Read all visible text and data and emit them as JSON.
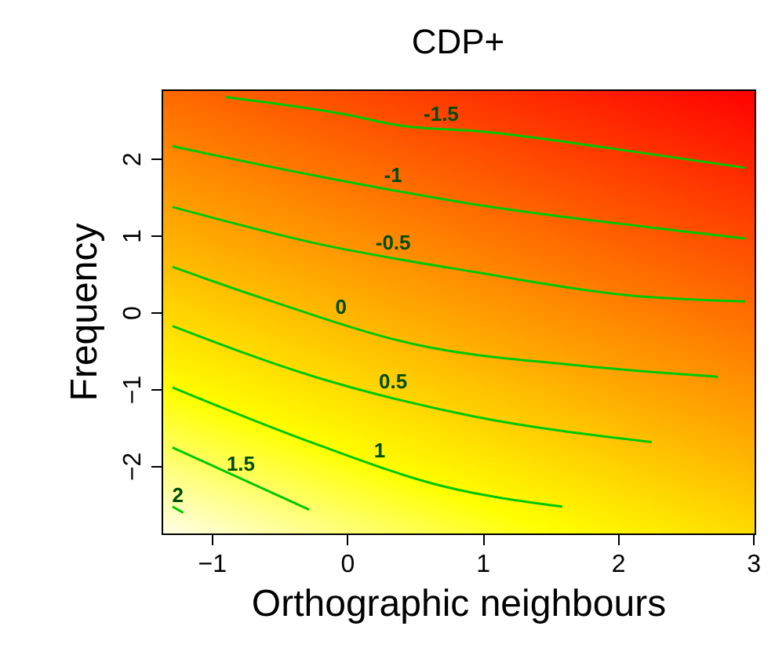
{
  "chart_data": {
    "type": "line",
    "title": "CDP+",
    "xlabel": "Orthographic neighbours",
    "ylabel": "Frequency",
    "xlim": [
      -1.37,
      3.01
    ],
    "ylim": [
      -2.88,
      2.9
    ],
    "xticks": [
      -1,
      0,
      1,
      2,
      3
    ],
    "yticks": [
      -2,
      -1,
      0,
      1,
      2
    ],
    "grid": false,
    "marker": "none",
    "line_style": "solid",
    "series": [
      {
        "name": "-1.5",
        "color": "#00c800",
        "x": [
          -0.9,
          0,
          0.39,
          1,
          2,
          2.94
        ],
        "values": [
          2.8,
          2.57,
          2.43,
          2.35,
          2.12,
          1.88
        ]
      },
      {
        "name": "-1",
        "color": "#00c800",
        "x": [
          -1.29,
          -0.24,
          0.92,
          2.45,
          2.94
        ],
        "values": [
          2.16,
          1.78,
          1.41,
          1.06,
          0.96
        ]
      },
      {
        "name": "-0.5",
        "color": "#00c800",
        "x": [
          -1.29,
          -0.24,
          0.92,
          2.08,
          2.94
        ],
        "values": [
          1.37,
          0.9,
          0.53,
          0.22,
          0.14
        ]
      },
      {
        "name": "0",
        "color": "#00c800",
        "x": [
          -1.29,
          -0.62,
          0.53,
          1.69,
          2.74
        ],
        "values": [
          0.59,
          0.18,
          -0.43,
          -0.69,
          -0.84
        ]
      },
      {
        "name": "0.5",
        "color": "#00c800",
        "x": [
          -1.29,
          -0.24,
          0.92,
          2.25
        ],
        "values": [
          -0.18,
          -0.84,
          -1.35,
          -1.69
        ]
      },
      {
        "name": "1",
        "color": "#00c800",
        "x": [
          -1.29,
          -0.24,
          0.72,
          1.59
        ],
        "values": [
          -0.98,
          -1.71,
          -2.27,
          -2.53
        ]
      },
      {
        "name": "1.5",
        "color": "#00c800",
        "x": [
          -1.29,
          -0.28
        ],
        "values": [
          -1.76,
          -2.57
        ]
      },
      {
        "name": "2",
        "color": "#00c800",
        "x": [
          -1.29,
          -1.21
        ],
        "values": [
          -2.53,
          -2.61
        ]
      }
    ]
  }
}
